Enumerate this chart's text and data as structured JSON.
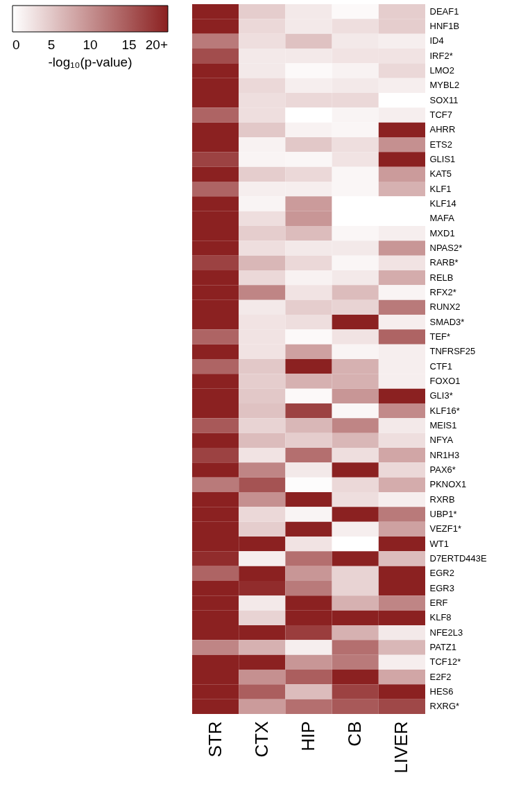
{
  "chart_data": {
    "type": "heatmap",
    "clabel": "-log₁₀(p-value)",
    "clim": [
      0,
      20
    ],
    "cticks": [
      0,
      5,
      10,
      15,
      {
        "value": 20,
        "label": "20+"
      }
    ],
    "categories": [
      "STR",
      "CTX",
      "HIP",
      "CB",
      "LIVER"
    ],
    "y_categories": [
      "DEAF1",
      "HNF1B",
      "ID4",
      "IRF2*",
      "LMO2",
      "MYBL2",
      "SOX11",
      "TCF7",
      "AHRR",
      "ETS2",
      "GLIS1",
      "KAT5",
      "KLF1",
      "KLF14",
      "MAFA",
      "MXD1",
      "NPAS2*",
      "RARB*",
      "RELB",
      "RFX2*",
      "RUNX2",
      "SMAD3*",
      "TEF*",
      "TNFRSF25",
      "CTF1",
      "FOXO1",
      "GLI3*",
      "KLF16*",
      "MEIS1",
      "NFYA",
      "NR1H3",
      "PAX6*",
      "PKNOX1",
      "RXRB",
      "UBP1*",
      "VEZF1*",
      "WT1",
      "D7ERTD443E",
      "EGR2",
      "EGR3",
      "ERF",
      "KLF8",
      "NFE2L3",
      "PATZ1",
      "TCF12*",
      "E2F2",
      "HES6",
      "RXRG*"
    ],
    "cells": [
      [
        20,
        4.5,
        2,
        0.5,
        4.5
      ],
      [
        20,
        3.5,
        2,
        3,
        4.5
      ],
      [
        12,
        3,
        5.5,
        2,
        1.5
      ],
      [
        16,
        2,
        2,
        2.5,
        2.5
      ],
      [
        20,
        2,
        0.5,
        1.2,
        3.5
      ],
      [
        20,
        3.5,
        1.5,
        2,
        1.5
      ],
      [
        20,
        3,
        3.5,
        3.5,
        0
      ],
      [
        14,
        3,
        0,
        1,
        1.5
      ],
      [
        20,
        5,
        1.2,
        0.8,
        20
      ],
      [
        20,
        1.2,
        5,
        3,
        10
      ],
      [
        17,
        1,
        0.8,
        2.5,
        20
      ],
      [
        20,
        4.5,
        3.5,
        0.8,
        9
      ],
      [
        14,
        1.5,
        1.5,
        0.8,
        7
      ],
      [
        20,
        1,
        9,
        0,
        0
      ],
      [
        20,
        3,
        9.5,
        0,
        0
      ],
      [
        20,
        4.5,
        6,
        0.8,
        1.5
      ],
      [
        20,
        3,
        2,
        2,
        9.5
      ],
      [
        17,
        6.5,
        3.5,
        0.8,
        2.5
      ],
      [
        20,
        3.5,
        1.2,
        2,
        7.5
      ],
      [
        20,
        11,
        2.5,
        6,
        1
      ],
      [
        20,
        2,
        4.5,
        4,
        12
      ],
      [
        20,
        2.5,
        3,
        20,
        1.5
      ],
      [
        14,
        2.5,
        0.5,
        2.5,
        14
      ],
      [
        20,
        2.5,
        8.5,
        1,
        1.5
      ],
      [
        14,
        5,
        20,
        7,
        1.5
      ],
      [
        20,
        4.5,
        7,
        7,
        1.5
      ],
      [
        20,
        5,
        0.5,
        9.5,
        20
      ],
      [
        20,
        5.5,
        17,
        0.8,
        10.5
      ],
      [
        15,
        4,
        6.5,
        11,
        2
      ],
      [
        20,
        6,
        4.5,
        6.5,
        3
      ],
      [
        17,
        2.5,
        13,
        3,
        8
      ],
      [
        20,
        11,
        2,
        20,
        3.5
      ],
      [
        12,
        15.5,
        0.3,
        3.5,
        7.5
      ],
      [
        20,
        10,
        20,
        3,
        1.5
      ],
      [
        20,
        3.5,
        1,
        20,
        12
      ],
      [
        20,
        4.5,
        20,
        1.5,
        8.5
      ],
      [
        20,
        20,
        2.5,
        0,
        20
      ],
      [
        19,
        1.5,
        13,
        20,
        6
      ],
      [
        14,
        20,
        9.5,
        4,
        20
      ],
      [
        20,
        19,
        12,
        4,
        20
      ],
      [
        20,
        2,
        20,
        7,
        11
      ],
      [
        20,
        4,
        20,
        20,
        20
      ],
      [
        20,
        20,
        17.5,
        7,
        2
      ],
      [
        11,
        7,
        1.5,
        13,
        6.5
      ],
      [
        20,
        20,
        9.5,
        12,
        1.5
      ],
      [
        20,
        10,
        14.5,
        20,
        8
      ],
      [
        20,
        14.5,
        6,
        17,
        20
      ],
      [
        20,
        9,
        13,
        15,
        16.5
      ]
    ]
  }
}
